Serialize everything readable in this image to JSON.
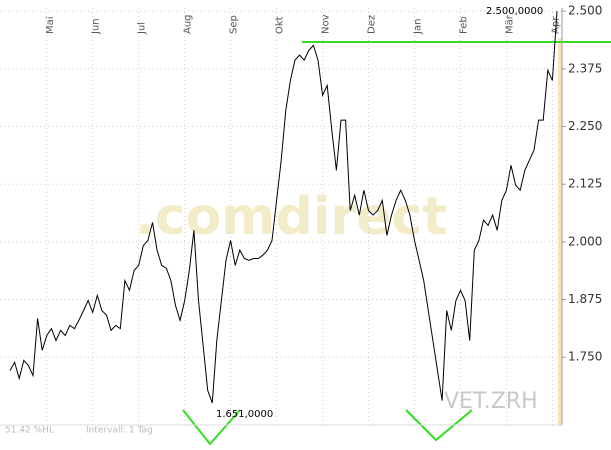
{
  "chart_data": {
    "type": "line",
    "watermark": ".comdirect",
    "symbol": "VET.ZRH",
    "annotations": [
      "1.651,0000",
      "2.500,0000"
    ],
    "footer": [
      "51.42 %HL",
      "Intervall: 1 Tag"
    ],
    "color": "#000000",
    "grid": true,
    "categories": [
      null,
      null,
      null,
      null,
      null,
      null,
      null,
      null,
      "Mai",
      null,
      null,
      null,
      null,
      null,
      null,
      null,
      null,
      null,
      "Jun",
      null,
      null,
      null,
      null,
      null,
      null,
      null,
      null,
      null,
      "Jul",
      null,
      null,
      null,
      null,
      null,
      null,
      null,
      null,
      null,
      "Aug",
      null,
      null,
      null,
      null,
      null,
      null,
      null,
      null,
      null,
      "Sep",
      null,
      null,
      null,
      null,
      null,
      null,
      null,
      null,
      null,
      "Okt",
      null,
      null,
      null,
      null,
      null,
      null,
      null,
      null,
      null,
      "Nov",
      null,
      null,
      null,
      null,
      null,
      null,
      null,
      null,
      null,
      "Dez",
      null,
      null,
      null,
      null,
      null,
      null,
      null,
      null,
      null,
      "Jan",
      null,
      null,
      null,
      null,
      null,
      null,
      null,
      null,
      null,
      "Feb",
      null,
      null,
      null,
      null,
      null,
      null,
      null,
      null,
      null,
      "Mär",
      null,
      null,
      null,
      null,
      null,
      null,
      null,
      null,
      null,
      "Apr",
      null
    ],
    "values": [
      1.721,
      1.739,
      1.704,
      1.743,
      1.732,
      1.71,
      1.834,
      1.765,
      1.797,
      1.812,
      1.786,
      1.808,
      1.797,
      1.819,
      1.812,
      1.83,
      1.851,
      1.873,
      1.847,
      1.884,
      1.851,
      1.841,
      1.808,
      1.819,
      1.812,
      1.916,
      1.895,
      1.938,
      1.949,
      1.992,
      2.003,
      2.042,
      1.982,
      1.949,
      1.943,
      1.916,
      1.862,
      1.83,
      1.873,
      1.938,
      2.025,
      1.873,
      1.776,
      1.678,
      1.651,
      1.786,
      1.873,
      1.96,
      2.003,
      1.949,
      1.982,
      1.964,
      1.96,
      1.964,
      1.964,
      1.971,
      1.982,
      2.003,
      2.09,
      2.177,
      2.285,
      2.35,
      2.394,
      2.405,
      2.394,
      2.415,
      2.426,
      2.394,
      2.318,
      2.339,
      2.242,
      2.155,
      2.264,
      2.264,
      2.068,
      2.101,
      2.058,
      2.112,
      2.068,
      2.058,
      2.068,
      2.09,
      2.014,
      2.058,
      2.09,
      2.112,
      2.09,
      2.058,
      2.003,
      1.96,
      1.916,
      1.851,
      1.786,
      1.721,
      1.656,
      1.851,
      1.808,
      1.873,
      1.895,
      1.873,
      1.786,
      1.982,
      2.003,
      2.047,
      2.036,
      2.058,
      2.025,
      2.09,
      2.112,
      2.166,
      2.123,
      2.112,
      2.155,
      2.177,
      2.199,
      2.264,
      2.264,
      2.372,
      2.35,
      2.5
    ],
    "ylim": [
      1.603,
      2.507
    ],
    "yticks": [
      {
        "value": 1.75,
        "label": "1.750"
      },
      {
        "value": 1.875,
        "label": "1.875"
      },
      {
        "value": 2.0,
        "label": "2.000"
      },
      {
        "value": 2.125,
        "label": "2.125"
      },
      {
        "value": 2.25,
        "label": "2.250"
      },
      {
        "value": 2.375,
        "label": "2.375"
      },
      {
        "value": 2.5,
        "label": "2.500"
      }
    ]
  }
}
